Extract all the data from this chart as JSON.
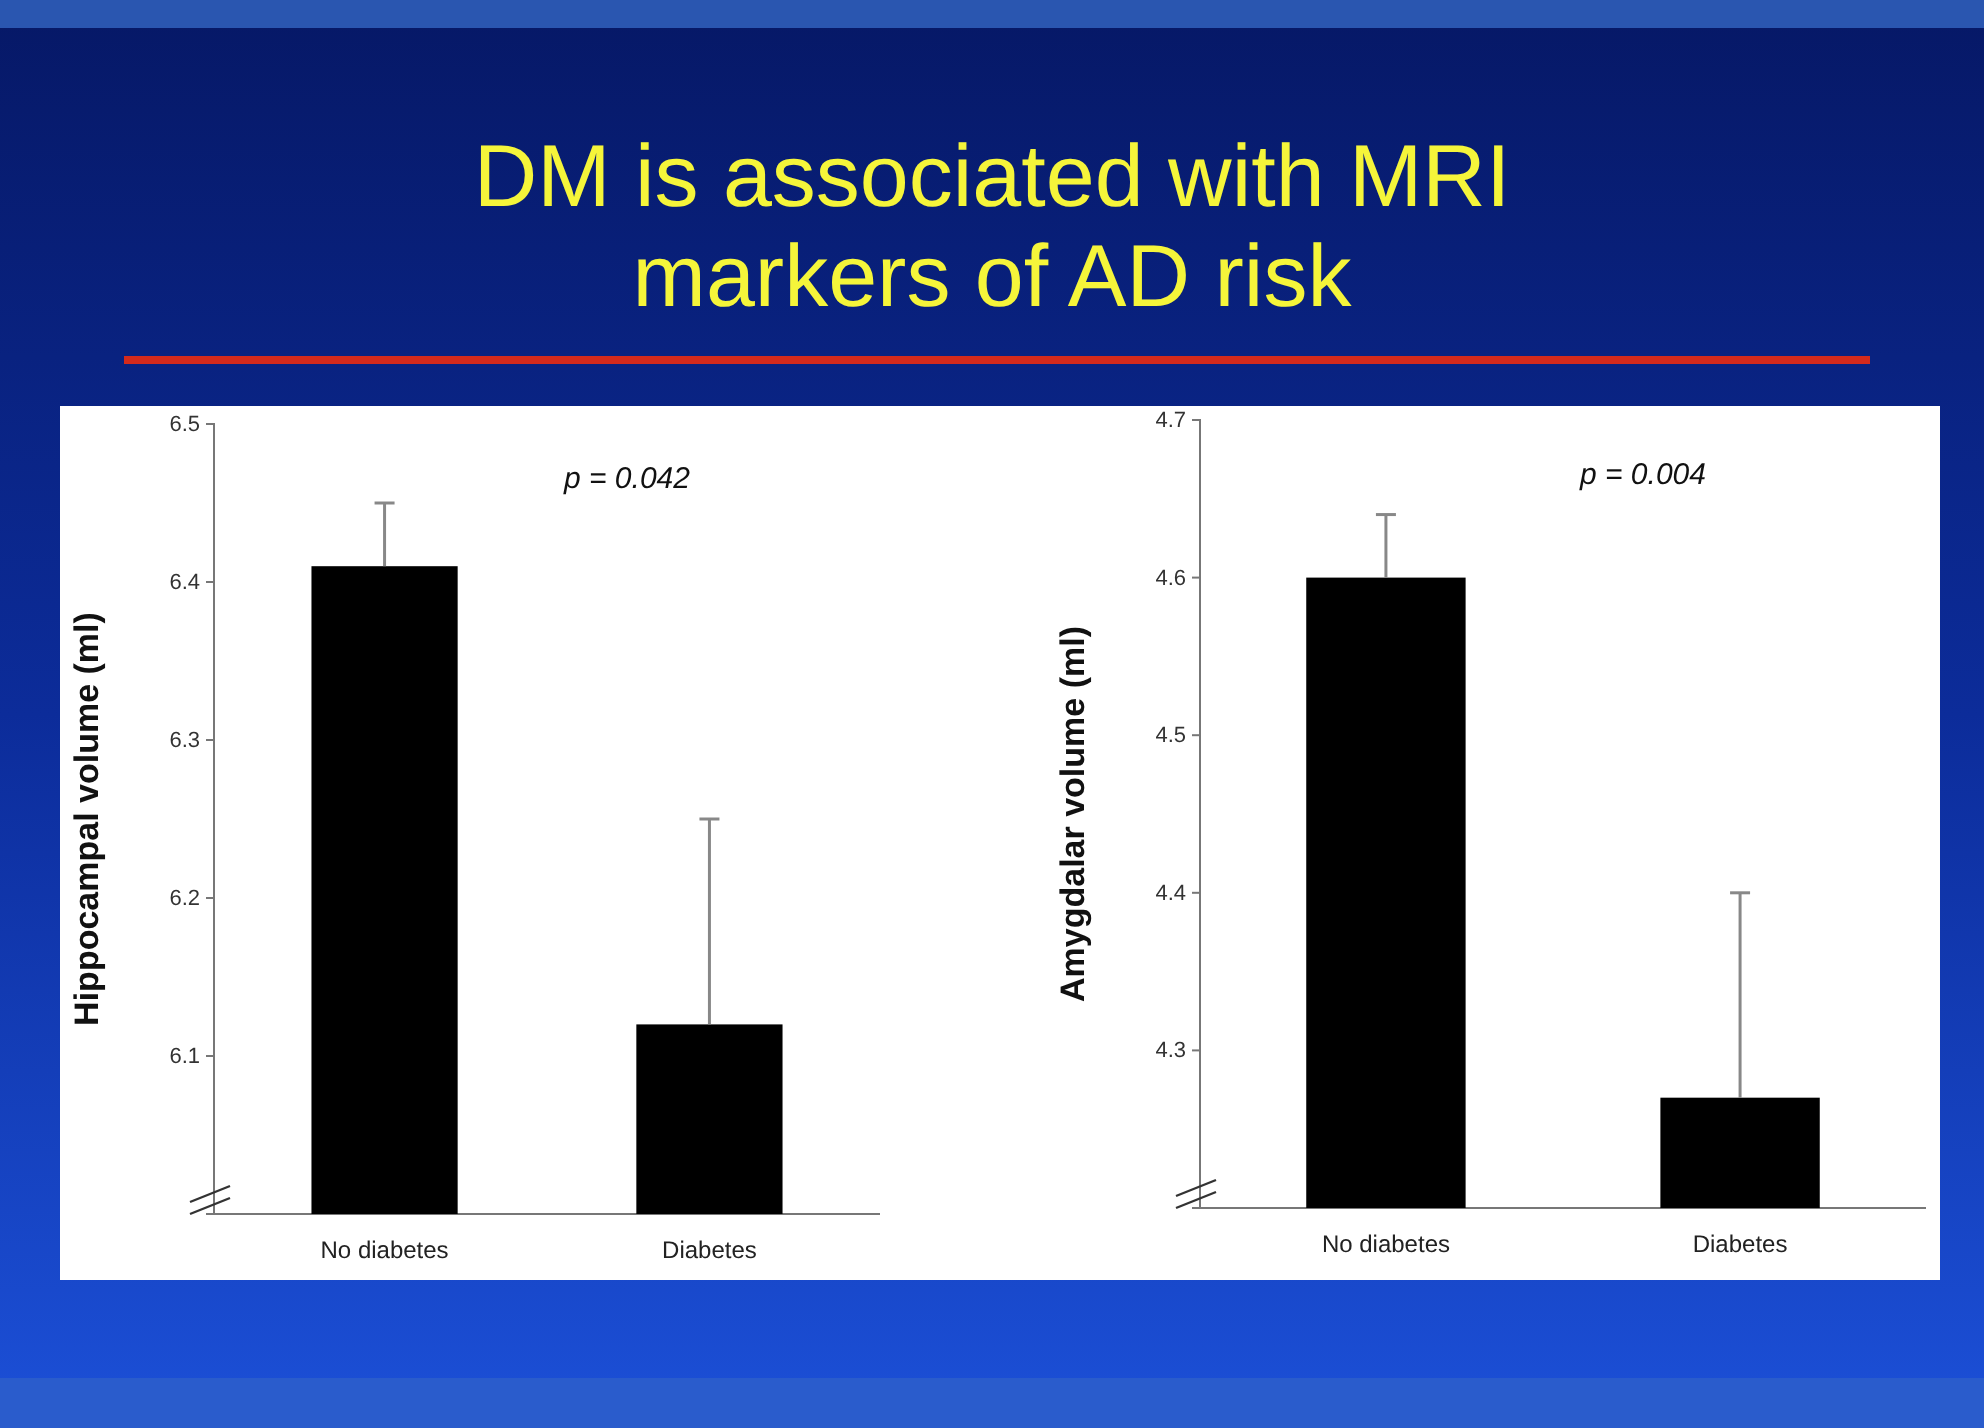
{
  "chart_data": [
    {
      "type": "bar",
      "title": "DM is associated with MRI markers of AD risk",
      "ylabel": "Hippocampal volume (ml)",
      "categories": [
        "No diabetes",
        "Diabetes"
      ],
      "values": [
        6.41,
        6.12
      ],
      "errors": [
        [
          6.41,
          6.45
        ],
        [
          6.12,
          6.25
        ]
      ],
      "color": "#000000",
      "ylim": [
        6.0,
        6.5
      ],
      "yticks": [
        6.1,
        6.2,
        6.3,
        6.4,
        6.5
      ],
      "annotations": [
        "p = 0.042"
      ],
      "grid": false
    },
    {
      "type": "bar",
      "ylabel": "Amygdalar volume (ml)",
      "categories": [
        "No diabetes",
        "Diabetes"
      ],
      "values": [
        4.6,
        4.27
      ],
      "errors": [
        [
          4.6,
          4.64
        ],
        [
          4.27,
          4.4
        ]
      ],
      "color": "#000000",
      "ylim": [
        4.2,
        4.7
      ],
      "yticks": [
        4.3,
        4.4,
        4.5,
        4.6,
        4.7
      ],
      "annotations": [
        "p = 0.004"
      ],
      "grid": false
    }
  ]
}
